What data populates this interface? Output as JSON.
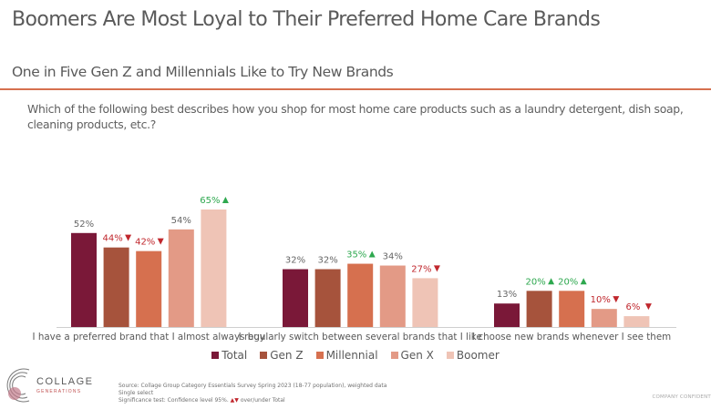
{
  "title": "Boomers Are Most Loyal to Their Preferred Home Care Brands",
  "subtitle": "One in Five Gen Z and Millennials Like to Try New Brands",
  "question": "Which of the following best describes how you shop for most home care products such as a laundry detergent, dish soap, cleaning products, etc.?",
  "colors": {
    "accent_rule": "#d6704f",
    "sig_up": "#2ea84f",
    "sig_down": "#c0272d",
    "label": "#666666"
  },
  "chart_data": {
    "type": "bar",
    "categories": [
      "I have a preferred brand that I almost always buy",
      "I regularly switch between several brands that I like",
      "I choose new brands whenever I see them"
    ],
    "series": [
      {
        "name": "Total",
        "color": "#7a1838",
        "values": [
          52,
          32,
          13
        ],
        "significance": [
          null,
          null,
          null
        ]
      },
      {
        "name": "Gen Z",
        "color": "#a6533c",
        "values": [
          44,
          32,
          20
        ],
        "significance": [
          "down",
          null,
          "up"
        ]
      },
      {
        "name": "Millennial",
        "color": "#d6704f",
        "values": [
          42,
          35,
          20
        ],
        "significance": [
          "down",
          "up",
          "up"
        ]
      },
      {
        "name": "Gen X",
        "color": "#e39a86",
        "values": [
          54,
          34,
          10
        ],
        "significance": [
          null,
          null,
          "down"
        ]
      },
      {
        "name": "Boomer",
        "color": "#efc4b6",
        "values": [
          65,
          27,
          6
        ],
        "significance": [
          "up",
          "down",
          "down"
        ]
      }
    ],
    "value_format": "%",
    "ylim": [
      0,
      70
    ],
    "grid": false,
    "legend": "bottom"
  },
  "footer": {
    "logo_text": "COLLAGE GENERATIONS",
    "source": "Source: Collage Group Category Essentials Survey Spring 2023 (18-77 population), weighted data",
    "select": "Single select",
    "significance": "Significance test: Confidence level 95%.",
    "significance_marks": "▲▼",
    "significance_suffix": "over/under Total",
    "confidential": "COMPANY CONFIDENT"
  }
}
